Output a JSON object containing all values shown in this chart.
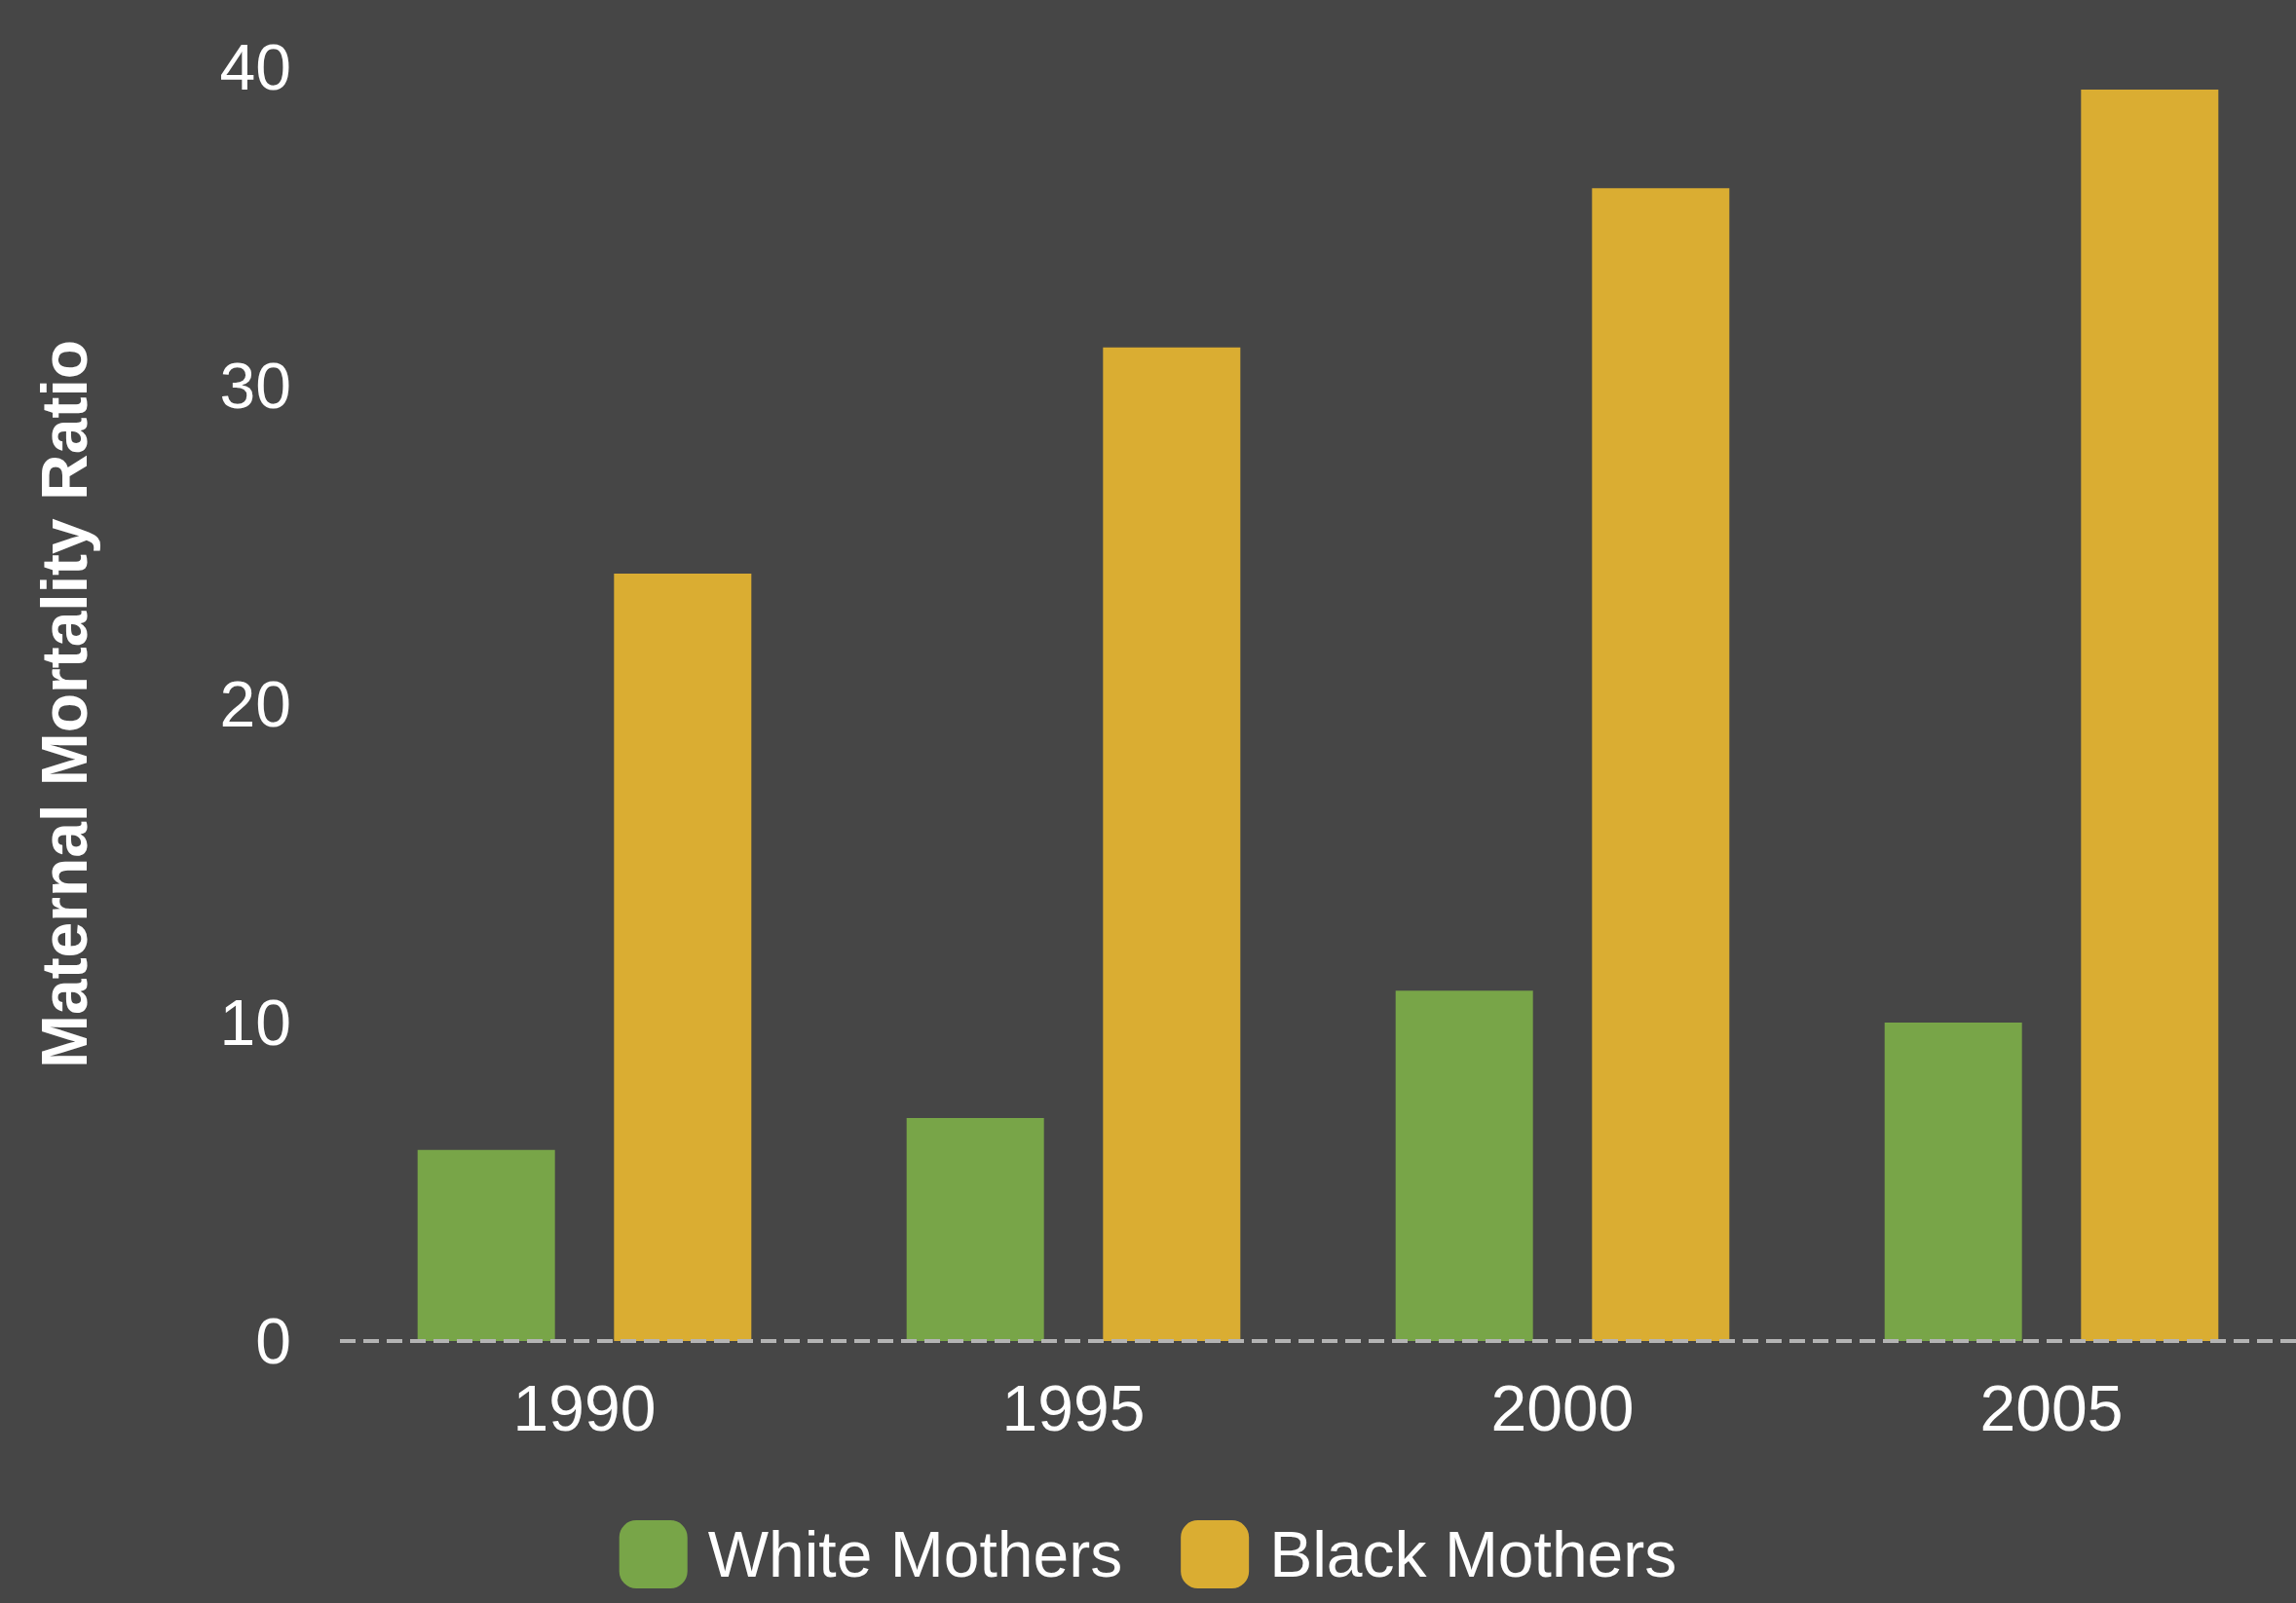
{
  "chart_data": {
    "type": "bar",
    "ylabel": "Maternal Mortality Ratio",
    "categories": [
      "1990",
      "1995",
      "2000",
      "2005"
    ],
    "series": [
      {
        "name": "White Mothers",
        "color": "#78a548",
        "values": [
          6,
          7,
          11,
          10
        ]
      },
      {
        "name": "Black Mothers",
        "color": "#daad32",
        "values": [
          24.1,
          31.2,
          36.2,
          39.3
        ]
      }
    ],
    "ylim": [
      0,
      40
    ],
    "yticks": [
      0,
      10,
      20,
      30,
      40
    ],
    "grid": false,
    "legend": "bottom",
    "ref_lines": [
      {
        "axis": "y",
        "value": 0,
        "color": "#b4b4b4",
        "line_style": "dashed"
      }
    ]
  }
}
